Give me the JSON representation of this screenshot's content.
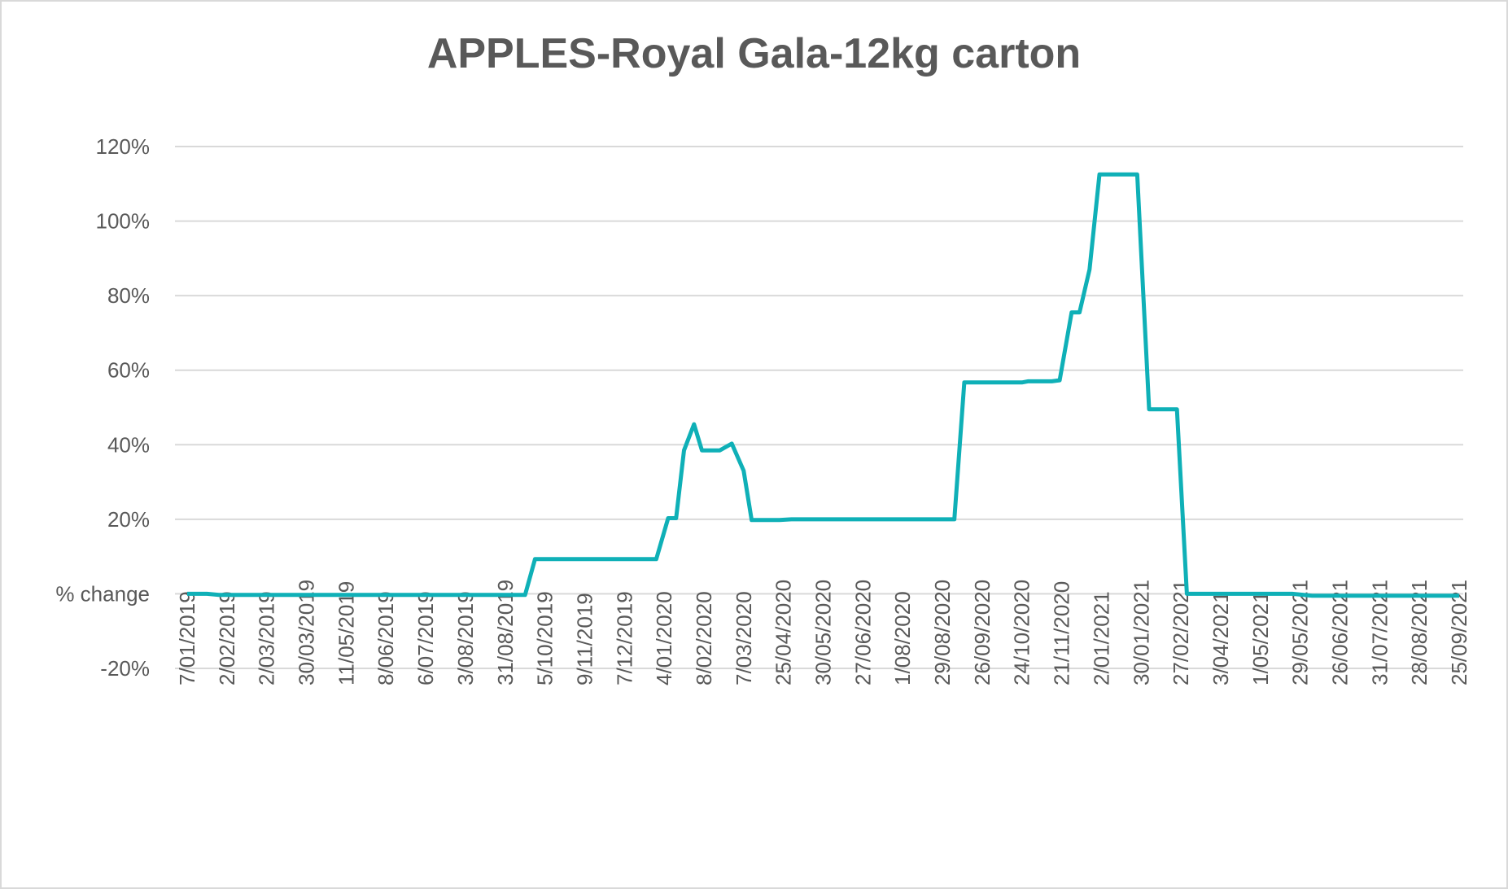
{
  "chart_data": {
    "type": "line",
    "title": "APPLES-Royal Gala-12kg carton",
    "xlabel": "",
    "ylabel": "",
    "ylim": [
      -0.2,
      1.2
    ],
    "y_ticks": [
      {
        "value": 1.2,
        "label": "120%"
      },
      {
        "value": 1.0,
        "label": "100%"
      },
      {
        "value": 0.8,
        "label": "80%"
      },
      {
        "value": 0.6,
        "label": "60%"
      },
      {
        "value": 0.4,
        "label": "40%"
      },
      {
        "value": 0.2,
        "label": "20%"
      },
      {
        "value": 0.0,
        "label": "% change"
      },
      {
        "value": -0.2,
        "label": "-20%"
      }
    ],
    "x_ticks": [
      "7/01/2019",
      "2/02/2019",
      "2/03/2019",
      "30/03/2019",
      "11/05/2019",
      "8/06/2019",
      "6/07/2019",
      "3/08/2019",
      "31/08/2019",
      "5/10/2019",
      "9/11/2019",
      "7/12/2019",
      "4/01/2020",
      "8/02/2020",
      "7/03/2020",
      "25/04/2020",
      "30/05/2020",
      "27/06/2020",
      "1/08/2020",
      "29/08/2020",
      "26/09/2020",
      "24/10/2020",
      "21/11/2020",
      "2/01/2021",
      "30/01/2021",
      "27/02/2021",
      "3/04/2021",
      "1/05/2021",
      "29/05/2021",
      "26/06/2021",
      "31/07/2021",
      "28/08/2021",
      "25/09/2021"
    ],
    "grid": true,
    "line_color": "#0fb0b7",
    "series": [
      {
        "points": [
          [
            0,
            0.0
          ],
          [
            0.5,
            0.0
          ],
          [
            0.8,
            -0.003
          ],
          [
            8.5,
            -0.003
          ],
          [
            8.75,
            0.093
          ],
          [
            11.8,
            0.093
          ],
          [
            12.1,
            0.203
          ],
          [
            12.3,
            0.203
          ],
          [
            12.5,
            0.385
          ],
          [
            12.75,
            0.455
          ],
          [
            12.95,
            0.385
          ],
          [
            13.4,
            0.385
          ],
          [
            13.7,
            0.403
          ],
          [
            14.0,
            0.33
          ],
          [
            14.2,
            0.198
          ],
          [
            14.9,
            0.198
          ],
          [
            15.2,
            0.2
          ],
          [
            19.3,
            0.2
          ],
          [
            19.55,
            0.567
          ],
          [
            21.0,
            0.567
          ],
          [
            21.15,
            0.57
          ],
          [
            21.75,
            0.57
          ],
          [
            21.95,
            0.573
          ],
          [
            22.25,
            0.755
          ],
          [
            22.45,
            0.755
          ],
          [
            22.7,
            0.87
          ],
          [
            22.95,
            1.125
          ],
          [
            23.9,
            1.125
          ],
          [
            24.2,
            0.495
          ],
          [
            24.9,
            0.495
          ],
          [
            25.15,
            0.0
          ],
          [
            27.8,
            0.0
          ],
          [
            28.3,
            -0.005
          ],
          [
            32.0,
            -0.005
          ]
        ]
      }
    ]
  }
}
